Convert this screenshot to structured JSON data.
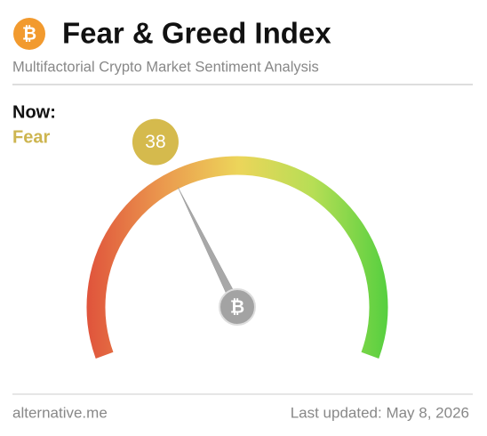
{
  "chart_data": {
    "type": "gauge",
    "title": "Fear & Greed Index",
    "subtitle": "Multifactorial Crypto Market Sentiment Analysis",
    "now_label": "Now:",
    "classification": "Fear",
    "value": 38,
    "ylim": [
      0,
      100
    ],
    "source": "alternative.me",
    "updated": "Last updated: May 8, 2026"
  }
}
